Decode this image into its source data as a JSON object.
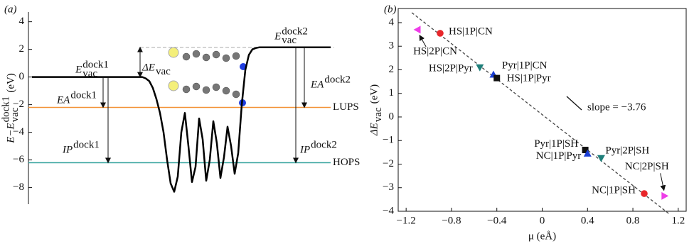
{
  "chart_data": [
    {
      "type": "line",
      "panel": "(a)",
      "color": "#000000",
      "ylabel": {
        "text": "E−E",
        "sub": "vac",
        "sup": "dock1",
        "after": "(eV)"
      },
      "ylim": [
        -9.2,
        4.7
      ],
      "yticks": [
        {
          "value": -8,
          "label": "−8"
        },
        {
          "value": -6,
          "label": "−6"
        },
        {
          "value": -4,
          "label": "−4"
        },
        {
          "value": -2,
          "label": "−2"
        },
        0,
        2,
        4
      ],
      "values": [
        0,
        0,
        0,
        0,
        0,
        0,
        0,
        0,
        0,
        0,
        0,
        0,
        0,
        0,
        0,
        0,
        0,
        0,
        0,
        0,
        0,
        0,
        0,
        0,
        0,
        0,
        0,
        0,
        0,
        0,
        0,
        0,
        -0.1,
        -0.3,
        -0.8,
        -1.6,
        -2.6,
        -4.0,
        -6.0,
        -7.7,
        -8.3,
        -7.2,
        -4.0,
        -2.6,
        -5.0,
        -7.6,
        -6.5,
        -3.0,
        -4.5,
        -7.5,
        -6.0,
        -3.2,
        -4.8,
        -7.3,
        -5.8,
        -3.6,
        -5.0,
        -7.0,
        -5.5,
        -2.0,
        0.5,
        1.6,
        2.0,
        2.1,
        2.15,
        2.15,
        2.15,
        2.15,
        2.15,
        2.15,
        2.15,
        2.15,
        2.15,
        2.15,
        2.15,
        2.15,
        2.15,
        2.15,
        2.15,
        2.15,
        2.15,
        2.15,
        2.15,
        2.15,
        2.15
      ],
      "vac_levels": [
        0,
        2.15
      ],
      "levels": [
        {
          "name": "LUPS",
          "value": -2.2,
          "color": "#f39236"
        },
        {
          "name": "HOPS",
          "value": -6.2,
          "color": "#3aa6a0"
        }
      ],
      "annotations": [
        {
          "text": "E",
          "sub": "vac",
          "sup": "dock1"
        },
        {
          "text": "EA",
          "sup": "dock1"
        },
        {
          "text": "IP",
          "sup": "dock1"
        },
        {
          "text": "ΔE",
          "sub": "vac"
        },
        {
          "text": "E",
          "sub": "vac",
          "sup": "dock2"
        },
        {
          "text": "EA",
          "sup": "dock2"
        },
        {
          "text": "IP",
          "sup": "dock2"
        }
      ]
    },
    {
      "type": "scatter",
      "panel": "(b)",
      "xlabel": "μ (eÅ)",
      "ylabel": {
        "text": "ΔE",
        "sub": "vac",
        "after": "(eV)"
      },
      "xlim": [
        -1.27,
        1.27
      ],
      "ylim": [
        -4,
        4.6
      ],
      "xticks": [
        {
          "value": -1.2,
          "label": "−1.2"
        },
        {
          "value": -0.8,
          "label": "−0.8"
        },
        {
          "value": -0.4,
          "label": "−0.4"
        },
        0,
        0.4,
        0.8,
        1.2
      ],
      "yticks": [
        {
          "value": -4,
          "label": "−4"
        },
        {
          "value": -3,
          "label": "−3"
        },
        {
          "value": -2,
          "label": "−2"
        },
        {
          "value": -1,
          "label": "−1"
        },
        0,
        1,
        2,
        3,
        4
      ],
      "fit": {
        "slope": -3.76,
        "intercept": 0.1,
        "label": "slope = −3.76"
      },
      "points": [
        {
          "label": "HS|2P|CN",
          "x": -1.1,
          "y": 3.7,
          "marker": "tri-left",
          "color": "#ee3de8"
        },
        {
          "label": "HS|1P|CN",
          "x": -0.9,
          "y": 3.55,
          "marker": "circle",
          "color": "#e8262b"
        },
        {
          "label": "HS|2P|Pyr",
          "x": -0.55,
          "y": 2.1,
          "marker": "tri-down",
          "color": "#1f7f7a"
        },
        {
          "label": "Pyr|1P|CN",
          "x": -0.43,
          "y": 1.8,
          "marker": "tri-up",
          "color": "#1b3fd6"
        },
        {
          "label": "HS|1P|Pyr",
          "x": -0.4,
          "y": 1.65,
          "marker": "square",
          "color": "#111111"
        },
        {
          "label": "Pyr|1P|SH",
          "x": 0.38,
          "y": -1.4,
          "marker": "square",
          "color": "#111111"
        },
        {
          "label": "NC|1P|Pyr",
          "x": 0.4,
          "y": -1.55,
          "marker": "tri-up",
          "color": "#1b3fd6"
        },
        {
          "label": "Pyr|2P|SH",
          "x": 0.52,
          "y": -1.75,
          "marker": "tri-down",
          "color": "#1f7f7a"
        },
        {
          "label": "NC|1P|SH",
          "x": 0.9,
          "y": -3.25,
          "marker": "circle",
          "color": "#e8262b"
        },
        {
          "label": "NC|2P|SH",
          "x": 1.08,
          "y": -3.35,
          "marker": "tri-right",
          "color": "#ee3de8"
        }
      ]
    }
  ]
}
